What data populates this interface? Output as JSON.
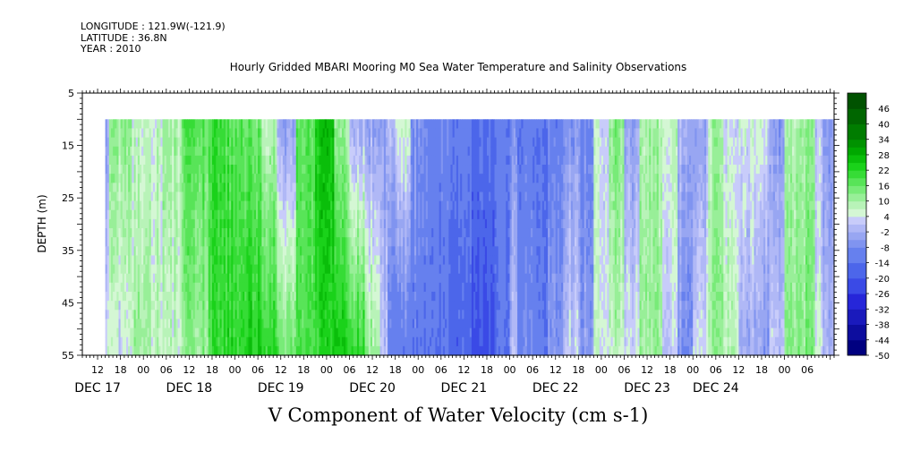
{
  "header": {
    "longitude": "LONGITUDE : 121.9W(-121.9)",
    "latitude": "LATITUDE : 36.8N",
    "year": "YEAR : 2010"
  },
  "chart_data": {
    "type": "heatmap",
    "title": "Hourly Gridded MBARI Mooring M0 Sea Water Temperature and Salinity Observations",
    "xlabel": "V Component of Water Velocity (cm s-1)",
    "ylabel": "DEPTH (m)",
    "x_unit": "hours since DEC 17 00:00",
    "xlim": [
      -16,
      181
    ],
    "ylim": [
      5,
      55
    ],
    "y_inverted": true,
    "y_ticks": [
      5,
      15,
      25,
      35,
      45,
      55
    ],
    "x_hour_ticks": [
      {
        "t": -12,
        "label": "12"
      },
      {
        "t": -6,
        "label": "18"
      },
      {
        "t": 0,
        "label": "00"
      },
      {
        "t": 6,
        "label": "06"
      },
      {
        "t": 12,
        "label": "12"
      },
      {
        "t": 18,
        "label": "18"
      },
      {
        "t": 24,
        "label": "00"
      },
      {
        "t": 30,
        "label": "06"
      },
      {
        "t": 36,
        "label": "12"
      },
      {
        "t": 42,
        "label": "18"
      },
      {
        "t": 48,
        "label": "00"
      },
      {
        "t": 54,
        "label": "06"
      },
      {
        "t": 60,
        "label": "12"
      },
      {
        "t": 66,
        "label": "18"
      },
      {
        "t": 72,
        "label": "00"
      },
      {
        "t": 78,
        "label": "06"
      },
      {
        "t": 84,
        "label": "12"
      },
      {
        "t": 90,
        "label": "18"
      },
      {
        "t": 96,
        "label": "00"
      },
      {
        "t": 102,
        "label": "06"
      },
      {
        "t": 108,
        "label": "12"
      },
      {
        "t": 114,
        "label": "18"
      },
      {
        "t": 120,
        "label": "00"
      },
      {
        "t": 126,
        "label": "06"
      },
      {
        "t": 132,
        "label": "12"
      },
      {
        "t": 138,
        "label": "18"
      },
      {
        "t": 144,
        "label": "00"
      },
      {
        "t": 150,
        "label": "06"
      },
      {
        "t": 156,
        "label": "12"
      },
      {
        "t": 162,
        "label": "18"
      },
      {
        "t": 168,
        "label": "00"
      },
      {
        "t": 174,
        "label": "06"
      }
    ],
    "x_day_labels": [
      {
        "t": -12,
        "label": "DEC 17"
      },
      {
        "t": 12,
        "label": "DEC 18"
      },
      {
        "t": 36,
        "label": "DEC 19"
      },
      {
        "t": 60,
        "label": "DEC 20"
      },
      {
        "t": 84,
        "label": "DEC 21"
      },
      {
        "t": 108,
        "label": "DEC 22"
      },
      {
        "t": 132,
        "label": "DEC 23"
      },
      {
        "t": 150,
        "label": "DEC 24"
      }
    ],
    "data_extent": {
      "t_start": -10,
      "t_end": 181,
      "depth_top": 10,
      "depth_bottom": 55
    },
    "bands": [
      {
        "t_start": -10,
        "t_end": -9,
        "top": -4,
        "bottom": 6
      },
      {
        "t_start": -9,
        "t_end": -3,
        "top": 12,
        "bottom": 4
      },
      {
        "t_start": -3,
        "t_end": 2,
        "top": 6,
        "bottom": 10
      },
      {
        "t_start": 2,
        "t_end": 5,
        "top": 6,
        "bottom": 8
      },
      {
        "t_start": 5,
        "t_end": 10,
        "top": 10,
        "bottom": 6
      },
      {
        "t_start": 10,
        "t_end": 17,
        "top": 18,
        "bottom": 12
      },
      {
        "t_start": 17,
        "t_end": 21,
        "top": 20,
        "bottom": 20
      },
      {
        "t_start": 21,
        "t_end": 26,
        "top": 18,
        "bottom": 22
      },
      {
        "t_start": 26,
        "t_end": 31,
        "top": 16,
        "bottom": 24
      },
      {
        "t_start": 31,
        "t_end": 35,
        "top": 8,
        "bottom": 22
      },
      {
        "t_start": 35,
        "t_end": 40,
        "top": -4,
        "bottom": 16
      },
      {
        "t_start": 40,
        "t_end": 45,
        "top": 18,
        "bottom": 20
      },
      {
        "t_start": 45,
        "t_end": 50,
        "top": 26,
        "bottom": 22
      },
      {
        "t_start": 50,
        "t_end": 54,
        "top": 10,
        "bottom": 24
      },
      {
        "t_start": 54,
        "t_end": 58,
        "top": -2,
        "bottom": 22
      },
      {
        "t_start": 58,
        "t_end": 62,
        "top": -4,
        "bottom": 12
      },
      {
        "t_start": 62,
        "t_end": 64,
        "top": -6,
        "bottom": 0
      },
      {
        "t_start": 64,
        "t_end": 66,
        "top": 2,
        "bottom": -10
      },
      {
        "t_start": 66,
        "t_end": 70,
        "top": 8,
        "bottom": -12
      },
      {
        "t_start": 70,
        "t_end": 74,
        "top": -6,
        "bottom": -12
      },
      {
        "t_start": 74,
        "t_end": 80,
        "top": -10,
        "bottom": -14
      },
      {
        "t_start": 80,
        "t_end": 86,
        "top": -12,
        "bottom": -18
      },
      {
        "t_start": 86,
        "t_end": 92,
        "top": -14,
        "bottom": -22
      },
      {
        "t_start": 92,
        "t_end": 96,
        "top": -12,
        "bottom": -14
      },
      {
        "t_start": 96,
        "t_end": 98,
        "top": -8,
        "bottom": 0
      },
      {
        "t_start": 98,
        "t_end": 102,
        "top": -12,
        "bottom": -8
      },
      {
        "t_start": 102,
        "t_end": 106,
        "top": -14,
        "bottom": -12
      },
      {
        "t_start": 106,
        "t_end": 110,
        "top": -10,
        "bottom": -6
      },
      {
        "t_start": 110,
        "t_end": 114,
        "top": -6,
        "bottom": 2
      },
      {
        "t_start": 114,
        "t_end": 118,
        "top": -8,
        "bottom": -4
      },
      {
        "t_start": 118,
        "t_end": 122,
        "top": 4,
        "bottom": 6
      },
      {
        "t_start": 122,
        "t_end": 126,
        "top": 14,
        "bottom": 8
      },
      {
        "t_start": 126,
        "t_end": 130,
        "top": -4,
        "bottom": 4
      },
      {
        "t_start": 130,
        "t_end": 136,
        "top": 10,
        "bottom": 12
      },
      {
        "t_start": 136,
        "t_end": 140,
        "top": 8,
        "bottom": 2
      },
      {
        "t_start": 140,
        "t_end": 144,
        "top": 0,
        "bottom": -6
      },
      {
        "t_start": 144,
        "t_end": 148,
        "top": -4,
        "bottom": 4
      },
      {
        "t_start": 148,
        "t_end": 152,
        "top": 10,
        "bottom": 12
      },
      {
        "t_start": 152,
        "t_end": 156,
        "top": 4,
        "bottom": 10
      },
      {
        "t_start": 156,
        "t_end": 160,
        "top": 6,
        "bottom": -2
      },
      {
        "t_start": 160,
        "t_end": 164,
        "top": 4,
        "bottom": -6
      },
      {
        "t_start": 164,
        "t_end": 168,
        "top": -4,
        "bottom": 2
      },
      {
        "t_start": 168,
        "t_end": 172,
        "top": 8,
        "bottom": 12
      },
      {
        "t_start": 172,
        "t_end": 176,
        "top": 12,
        "bottom": 14
      },
      {
        "t_start": 176,
        "t_end": 178,
        "top": 2,
        "bottom": 6
      },
      {
        "t_start": 178,
        "t_end": 181,
        "top": -6,
        "bottom": -2
      }
    ],
    "colorbar": {
      "levels": [
        46,
        40,
        34,
        28,
        22,
        16,
        10,
        4,
        -2,
        -8,
        -14,
        -20,
        -26,
        -32,
        -38,
        -44,
        -50
      ],
      "range": [
        -50,
        52
      ],
      "colors": [
        "#000080",
        "#0d0d9e",
        "#1a1abc",
        "#2626d9",
        "#3a4ae6",
        "#4c66ea",
        "#6680ee",
        "#8094f0",
        "#98a6f2",
        "#b0b8f6",
        "#c8ccfa",
        "#d4f7d4",
        "#b8f3b8",
        "#98ef98",
        "#78eb78",
        "#58e458",
        "#36dc36",
        "#1ad21a",
        "#0abe0a",
        "#00a800",
        "#009200",
        "#007c00",
        "#006600",
        "#005200",
        "#003e00"
      ],
      "color_bounds": [
        -50,
        -44,
        -38,
        -32,
        -26,
        -20,
        -14,
        -8,
        -5,
        -2,
        1,
        4,
        7,
        10,
        13,
        16,
        19,
        22,
        25,
        28,
        31,
        34,
        40,
        46,
        52
      ]
    }
  }
}
